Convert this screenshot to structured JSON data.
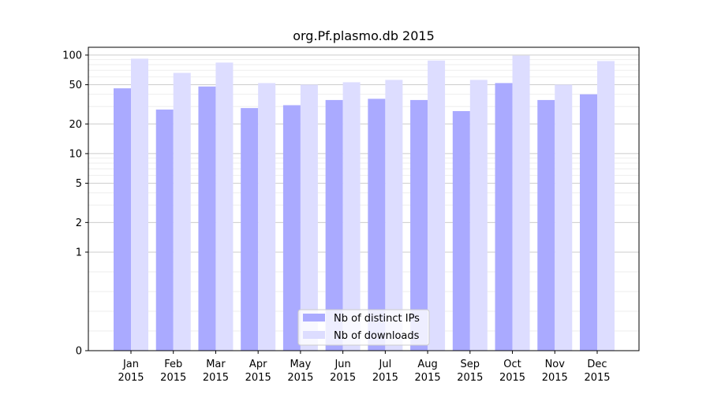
{
  "chart_data": {
    "type": "bar",
    "title": "org.Pf.plasmo.db 2015",
    "xlabel": "",
    "ylabel": "",
    "yscale": "symlog",
    "ylim": [
      0,
      120
    ],
    "yticks": [
      0,
      1,
      2,
      5,
      10,
      20,
      50,
      100
    ],
    "grid": true,
    "legend_position": "bottom-center",
    "categories": [
      [
        "Jan",
        "2015"
      ],
      [
        "Feb",
        "2015"
      ],
      [
        "Mar",
        "2015"
      ],
      [
        "Apr",
        "2015"
      ],
      [
        "May",
        "2015"
      ],
      [
        "Jun",
        "2015"
      ],
      [
        "Jul",
        "2015"
      ],
      [
        "Aug",
        "2015"
      ],
      [
        "Sep",
        "2015"
      ],
      [
        "Oct",
        "2015"
      ],
      [
        "Nov",
        "2015"
      ],
      [
        "Dec",
        "2015"
      ]
    ],
    "series": [
      {
        "name": "Nb of distinct IPs",
        "color": "#aaaaff",
        "values": [
          46,
          28,
          48,
          29,
          31,
          35,
          36,
          35,
          27,
          52,
          35,
          40
        ]
      },
      {
        "name": "Nb of downloads",
        "color": "#ddddff",
        "values": [
          92,
          66,
          84,
          52,
          50,
          53,
          56,
          88,
          56,
          99,
          50,
          87
        ]
      }
    ]
  }
}
